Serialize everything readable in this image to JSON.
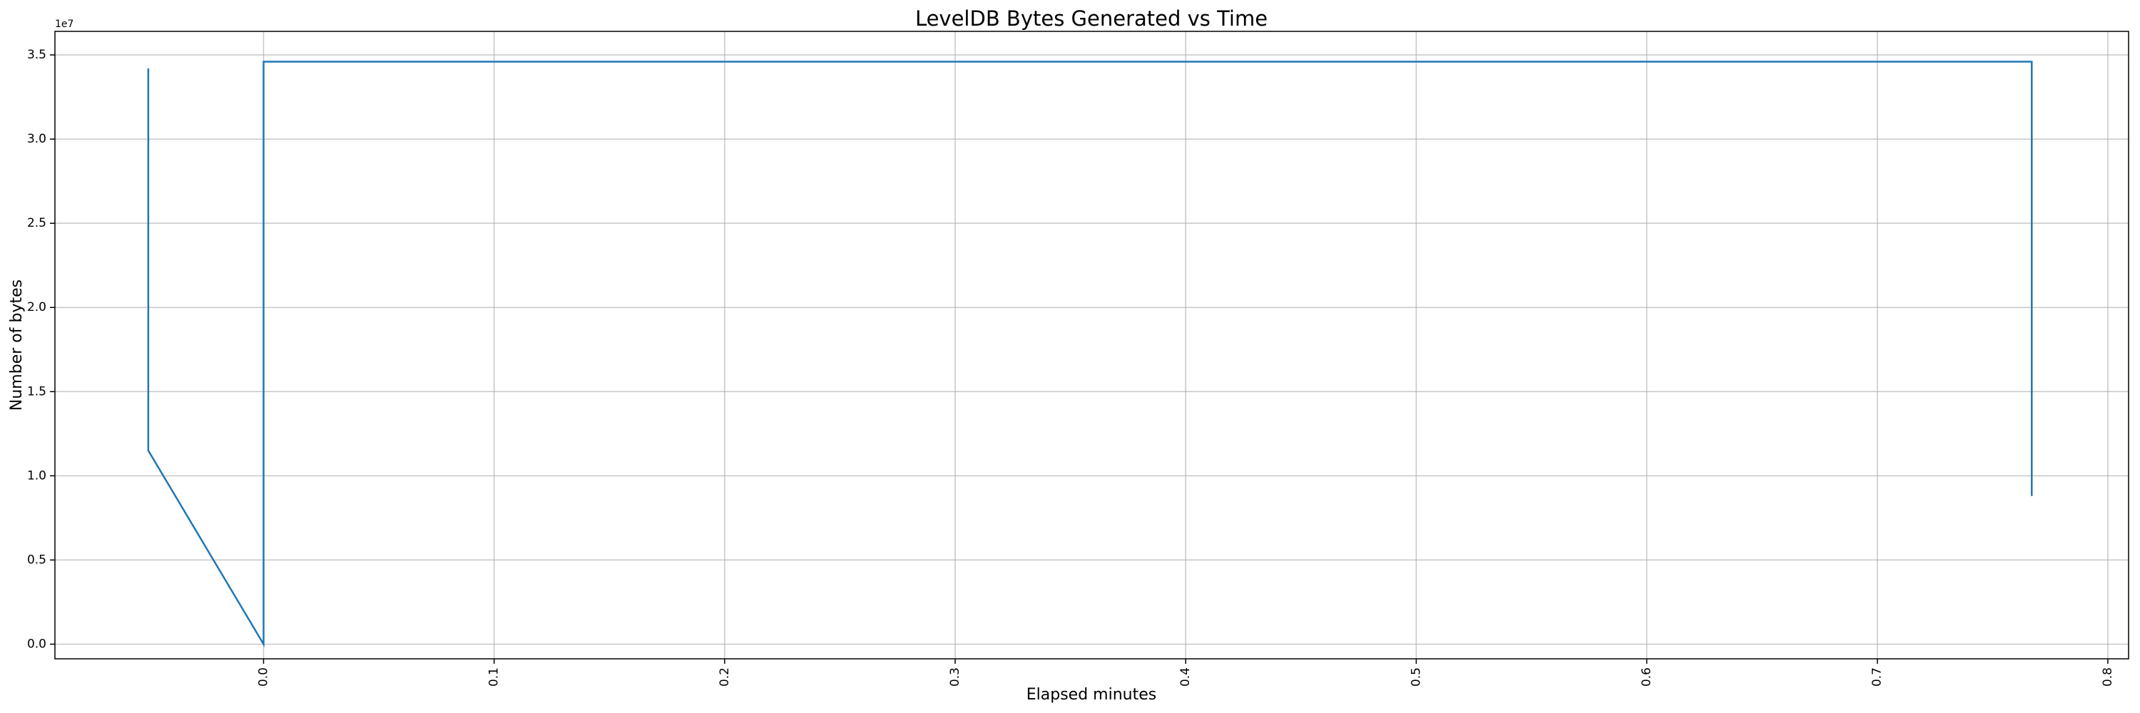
{
  "chart_data": {
    "type": "line",
    "title": "LevelDB Bytes Generated vs Time",
    "xlabel": "Elapsed minutes",
    "ylabel": "Number of bytes",
    "y_offset_label": "1e7",
    "x": [
      -0.05,
      -0.05,
      0,
      0,
      0.767,
      0.767
    ],
    "series": [
      {
        "color": "#1f77b4",
        "values": [
          3.42,
          1.15,
          0,
          3.46,
          3.46,
          0.88
        ]
      }
    ],
    "xlim": [
      -0.0905,
      0.809
    ],
    "ylim": [
      -0.087,
      3.64
    ],
    "xticks": [
      {
        "value": 0,
        "label": "0.0"
      },
      0.1,
      0.2,
      0.3,
      0.4,
      0.5,
      0.6,
      0.7,
      0.8
    ],
    "yticks": [
      {
        "value": 0,
        "label": "0.0"
      },
      0.5,
      {
        "value": 1,
        "label": "1.0"
      },
      1.5,
      {
        "value": 2,
        "label": "2.0"
      },
      2.5,
      {
        "value": 3,
        "label": "3.0"
      },
      3.5
    ],
    "grid": true
  }
}
